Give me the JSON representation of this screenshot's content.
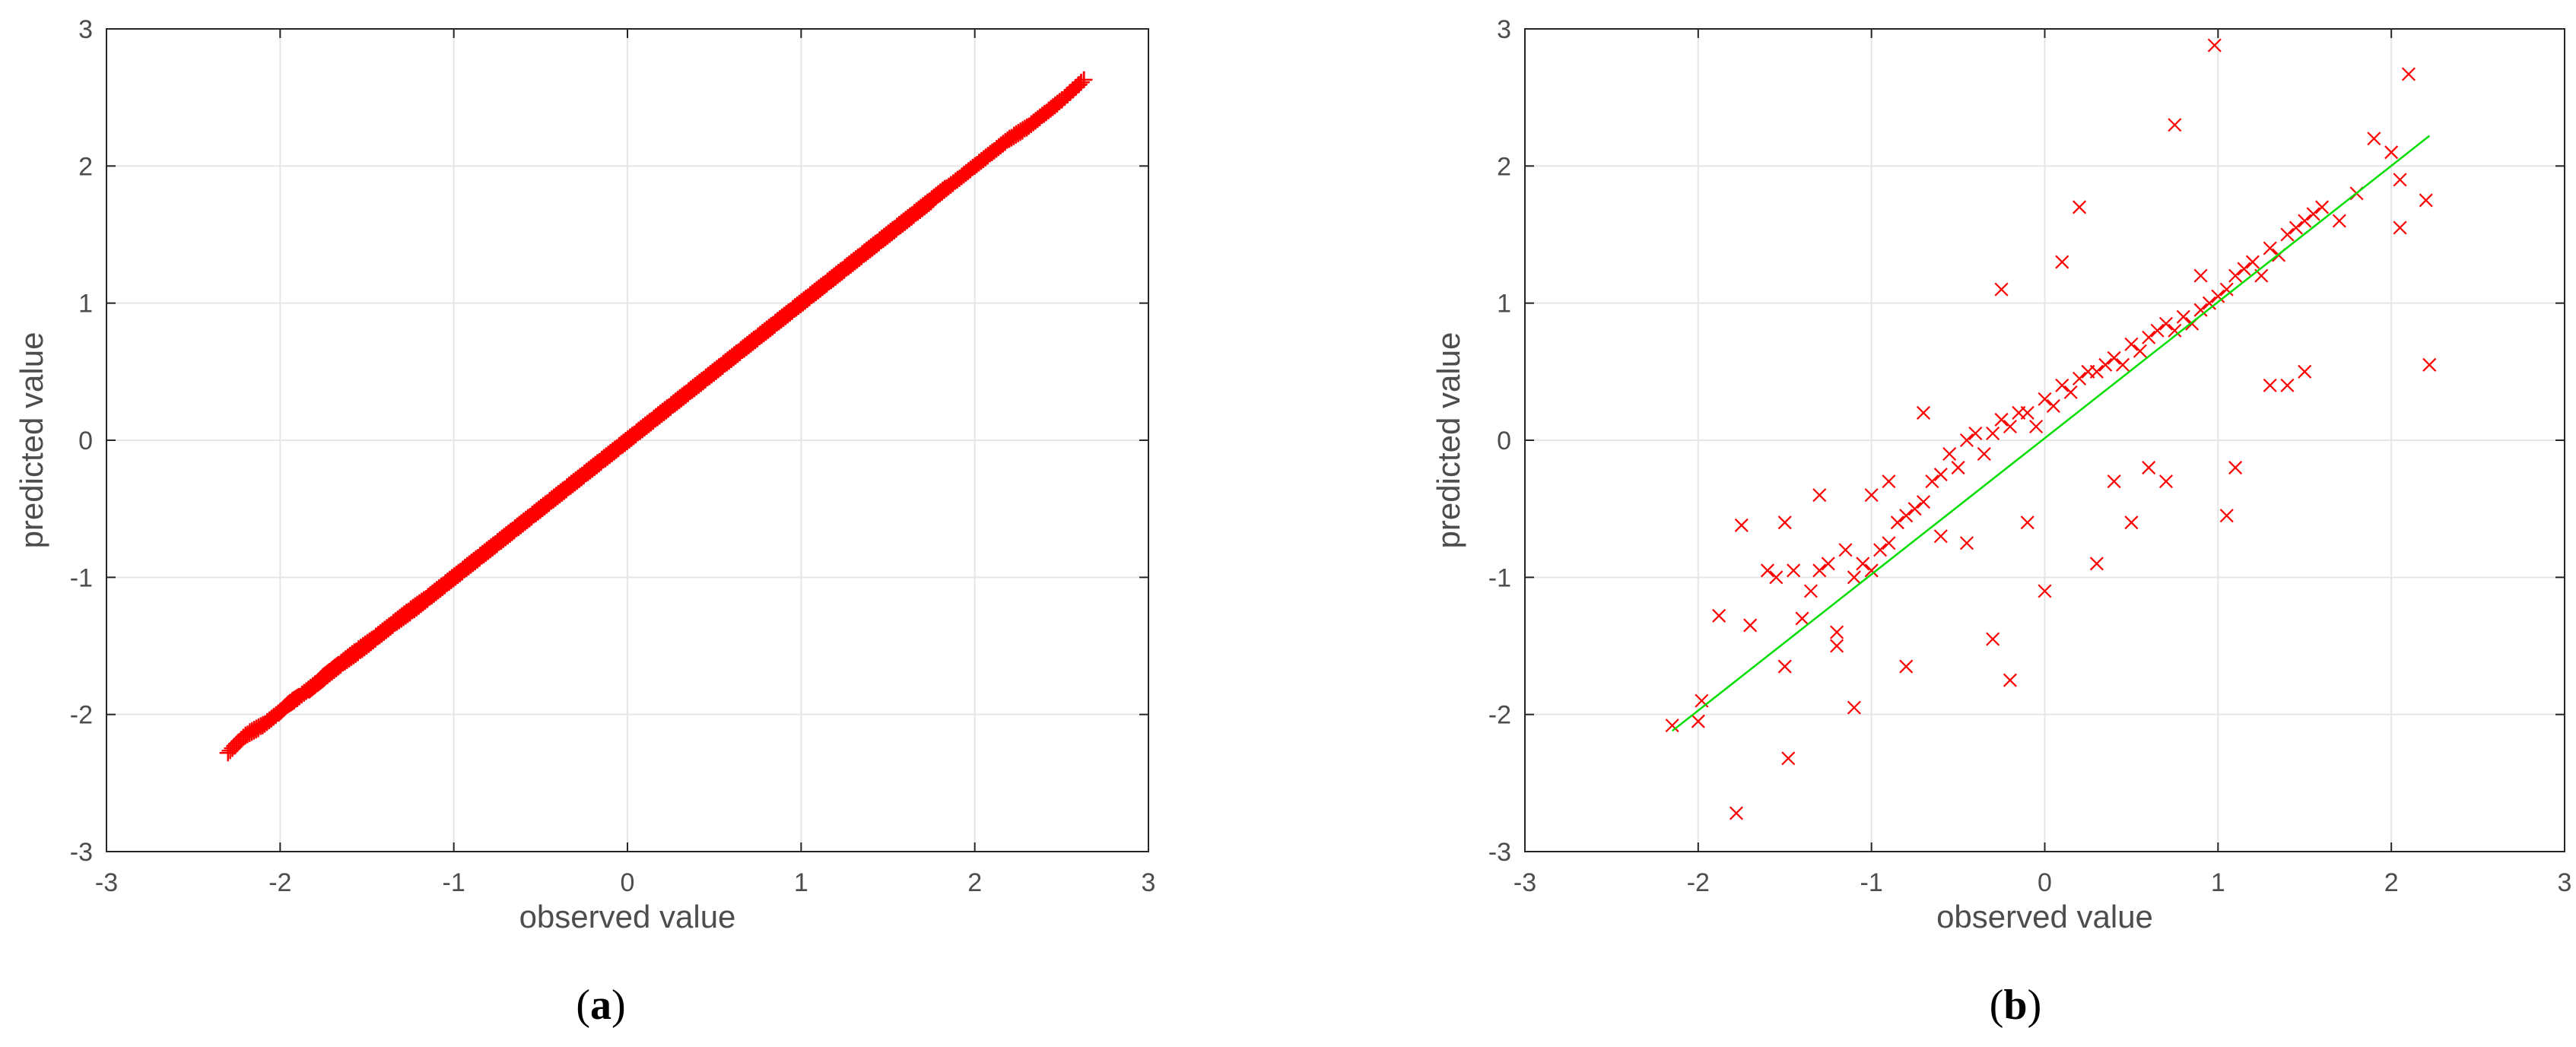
{
  "chart_data": [
    {
      "type": "scatter",
      "panel_label": "a",
      "marker": "plus",
      "marker_color": "#ff0000",
      "xlabel": "observed value",
      "ylabel": "predicted value",
      "xlim": [
        -3,
        3
      ],
      "ylim": [
        -3,
        3
      ],
      "xticks": [
        "-3",
        "-2",
        "-1",
        "0",
        "1",
        "2",
        "3"
      ],
      "yticks": [
        "-3",
        "-2",
        "-1",
        "0",
        "1",
        "2",
        "3"
      ],
      "grid": true,
      "series": [
        {
          "x": [
            -2.3,
            -2.2,
            -2.1,
            -2.0,
            -1.95,
            -1.9,
            -1.8,
            -1.75,
            -1.7,
            -1.6,
            -1.5,
            -1.4,
            -1.3,
            -1.2,
            -1.1,
            -1.0,
            -0.9,
            -0.8,
            -0.7,
            -0.6,
            -0.5,
            -0.4,
            -0.3,
            -0.2,
            -0.1,
            0.0,
            0.1,
            0.2,
            0.3,
            0.4,
            0.5,
            0.6,
            0.7,
            0.8,
            0.9,
            1.0,
            1.1,
            1.2,
            1.3,
            1.4,
            1.5,
            1.6,
            1.7,
            1.8,
            1.9,
            2.0,
            2.1,
            2.2,
            2.3,
            2.4,
            2.5,
            2.63
          ],
          "y": [
            -2.28,
            -2.15,
            -2.08,
            -1.98,
            -1.92,
            -1.88,
            -1.78,
            -1.73,
            -1.68,
            -1.58,
            -1.49,
            -1.39,
            -1.29,
            -1.2,
            -1.1,
            -1.0,
            -0.9,
            -0.8,
            -0.7,
            -0.6,
            -0.5,
            -0.4,
            -0.3,
            -0.2,
            -0.1,
            0.0,
            0.1,
            0.2,
            0.3,
            0.4,
            0.5,
            0.6,
            0.7,
            0.8,
            0.9,
            1.0,
            1.1,
            1.2,
            1.3,
            1.4,
            1.5,
            1.6,
            1.7,
            1.8,
            1.9,
            2.0,
            2.1,
            2.2,
            2.28,
            2.38,
            2.48,
            2.63
          ]
        }
      ]
    },
    {
      "type": "scatter",
      "panel_label": "b",
      "marker": "x",
      "marker_color": "#ff0000",
      "fit_line_color": "#00dd00",
      "xlabel": "observed value",
      "ylabel": "predicted value",
      "xlim": [
        -3,
        3
      ],
      "ylim": [
        -3,
        3
      ],
      "xticks": [
        "-3",
        "-2",
        "-1",
        "0",
        "1",
        "2",
        "3"
      ],
      "yticks": [
        "-3",
        "-2",
        "-1",
        "0",
        "1",
        "2",
        "3"
      ],
      "grid": true,
      "series": [
        {
          "x": [
            -2.15,
            -1.98,
            -2.0,
            -1.88,
            -1.75,
            -1.7,
            -1.6,
            -1.55,
            -1.5,
            -1.45,
            -1.48,
            -1.4,
            -1.35,
            -1.3,
            -1.25,
            -1.2,
            -1.15,
            -1.1,
            -1.05,
            -1.0,
            -0.95,
            -0.9,
            -0.85,
            -0.8,
            -0.75,
            -0.7,
            -0.65,
            -0.6,
            -0.55,
            -0.5,
            -0.45,
            -0.4,
            -0.35,
            -0.3,
            -0.25,
            -0.2,
            -0.15,
            -0.1,
            -0.05,
            0.0,
            0.05,
            0.1,
            0.15,
            0.2,
            0.25,
            0.3,
            0.35,
            0.4,
            0.45,
            0.5,
            0.55,
            0.6,
            0.65,
            0.7,
            0.75,
            0.8,
            0.85,
            0.9,
            0.95,
            1.0,
            1.05,
            1.1,
            1.15,
            1.2,
            1.25,
            1.3,
            1.35,
            1.4,
            1.45,
            1.5,
            1.55,
            1.6,
            1.7,
            1.8,
            1.9,
            2.0,
            2.05,
            2.1,
            2.2,
            2.22,
            -1.1,
            -1.2,
            -0.8,
            -0.3,
            -0.2,
            0.0,
            0.3,
            0.5,
            0.7,
            0.75,
            0.98,
            1.05,
            1.3,
            1.4,
            2.05,
            -1.5,
            -1.78,
            -0.45,
            -0.25,
            -1.0,
            -0.9,
            -0.6,
            0.1,
            0.2,
            0.6,
            0.9,
            1.1,
            1.5,
            -1.3,
            -0.7,
            -0.1,
            0.4
          ],
          "y": [
            -2.08,
            -1.9,
            -2.05,
            -1.28,
            -0.62,
            -1.35,
            -0.95,
            -1.0,
            -0.6,
            -0.95,
            -2.32,
            -1.3,
            -1.1,
            -0.95,
            -0.9,
            -1.4,
            -0.8,
            -1.0,
            -0.9,
            -0.95,
            -0.8,
            -0.75,
            -0.6,
            -0.55,
            -0.5,
            -0.45,
            -0.3,
            -0.25,
            -0.1,
            -0.2,
            0.0,
            0.05,
            -0.1,
            0.05,
            0.15,
            0.1,
            0.2,
            0.2,
            0.1,
            0.3,
            0.25,
            0.4,
            0.35,
            0.45,
            0.5,
            0.5,
            0.55,
            0.6,
            0.55,
            0.7,
            0.65,
            0.75,
            0.8,
            0.85,
            0.8,
            0.9,
            0.85,
            0.95,
            1.0,
            1.05,
            1.1,
            1.2,
            1.25,
            1.3,
            1.2,
            1.4,
            1.35,
            1.5,
            1.55,
            1.6,
            1.65,
            1.7,
            1.6,
            1.8,
            2.2,
            2.1,
            1.55,
            2.67,
            1.75,
            0.55,
            -1.95,
            -1.5,
            -1.65,
            -1.45,
            -1.75,
            -1.1,
            -0.9,
            -0.6,
            -0.3,
            2.3,
            2.88,
            -0.55,
            0.4,
            0.4,
            1.9,
            -1.65,
            -2.72,
            -0.75,
            1.1,
            -0.4,
            -0.3,
            -0.7,
            1.3,
            1.7,
            -0.2,
            1.2,
            -0.2,
            0.5,
            -0.4,
            0.2,
            -0.6,
            -0.3
          ]
        }
      ],
      "fit_line": {
        "x": [
          -2.15,
          2.22
        ],
        "y": [
          -2.12,
          2.22
        ]
      }
    }
  ]
}
